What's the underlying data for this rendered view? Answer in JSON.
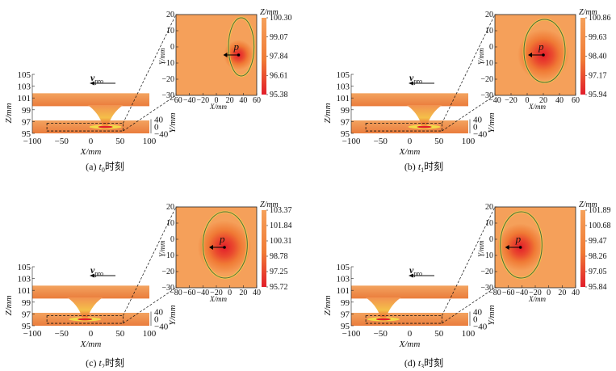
{
  "colors": {
    "low": "#e21d2a",
    "mid": "#f07a35",
    "high": "#f5a05a",
    "bright": "#f3e24a",
    "contour": "#4a6a3a",
    "frame": "#222222"
  },
  "chart_data": [
    {
      "type": "heatmap",
      "panel": "a",
      "caption": "(a) t0时刻",
      "caption_sub": {
        "prefix": "(a) ",
        "var": "t",
        "sub": "0",
        "suffix": "时刻"
      },
      "velocity_label": {
        "main": "v",
        "sub": "pro"
      },
      "view3d": {
        "zlabel": "Z/mm",
        "xlabel": "X/mm",
        "ylabel": "Y/mm",
        "z_ticks": [
          "105",
          "103",
          "101",
          "99",
          "97",
          "95"
        ],
        "x_ticks": [
          "−100",
          "−50",
          "0",
          "50",
          "100"
        ],
        "y_ticks": [
          "40",
          "0",
          "−40"
        ],
        "crater_x": 25
      },
      "zoom": {
        "xlabel": "X/mm",
        "ylabel": "Y/mm",
        "xlim": [
          -60,
          60
        ],
        "ylim": [
          -30,
          20
        ],
        "x_ticks": [
          "−60",
          "−40",
          "−20",
          "0",
          "20",
          "40",
          "60"
        ],
        "y_ticks": [
          "20",
          "10",
          "0",
          "−10",
          "−20",
          "−30"
        ],
        "point_label": "p",
        "center": [
          33,
          -5
        ],
        "radius": [
          14,
          11
        ],
        "contour": [
          [
            18,
            -18
          ],
          [
            56,
            18
          ]
        ]
      },
      "colorbar": {
        "title": "Z/mm",
        "ticks": [
          "100.30",
          "99.07",
          "97.84",
          "96.61",
          "95.38"
        ]
      }
    },
    {
      "type": "heatmap",
      "panel": "b",
      "caption": "(b) t1时刻",
      "caption_sub": {
        "prefix": "(b) ",
        "var": "t",
        "sub": "1",
        "suffix": "时刻"
      },
      "velocity_label": {
        "main": "v",
        "sub": "pro"
      },
      "view3d": {
        "zlabel": "Z/mm",
        "xlabel": "X/mm",
        "ylabel": "Y/mm",
        "z_ticks": [
          "105",
          "103",
          "101",
          "99",
          "97",
          "95"
        ],
        "x_ticks": [
          "−100",
          "−50",
          "0",
          "50",
          "100"
        ],
        "y_ticks": [
          "40",
          "0",
          "−40"
        ],
        "crater_x": 25
      },
      "zoom": {
        "xlabel": "X/mm",
        "ylabel": "Y/mm",
        "xlim": [
          -40,
          60
        ],
        "ylim": [
          -30,
          20
        ],
        "x_ticks": [
          "−40",
          "−20",
          "0",
          "20",
          "40",
          "60"
        ],
        "y_ticks": [
          "20",
          "10",
          "0",
          "−10",
          "−20",
          "−30"
        ],
        "point_label": "p",
        "center": [
          20,
          -5
        ],
        "radius": [
          20,
          14
        ],
        "contour": [
          [
            -4,
            -22
          ],
          [
            47,
            17
          ]
        ]
      },
      "colorbar": {
        "title": "Z/mm",
        "ticks": [
          "100.86",
          "99.63",
          "98.40",
          "97.17",
          "95.94"
        ]
      }
    },
    {
      "type": "heatmap",
      "panel": "c",
      "caption": "(c) t2时刻",
      "caption_sub": {
        "prefix": "(c) ",
        "var": "t",
        "sub": "2",
        "suffix": "时刻"
      },
      "velocity_label": {
        "main": "v",
        "sub": "pro"
      },
      "view3d": {
        "zlabel": "Z/mm",
        "xlabel": "X/mm",
        "ylabel": "Y/mm",
        "z_ticks": [
          "105",
          "103",
          "101",
          "99",
          "97",
          "95"
        ],
        "x_ticks": [
          "−100",
          "−50",
          "0",
          "50",
          "100"
        ],
        "y_ticks": [
          "40",
          "0",
          "−40"
        ],
        "crater_x": -10
      },
      "zoom": {
        "xlabel": "X/mm",
        "ylabel": "Y/mm",
        "xlim": [
          -80,
          40
        ],
        "ylim": [
          -30,
          20
        ],
        "x_ticks": [
          "−80",
          "−60",
          "−40",
          "−20",
          "0",
          "20",
          "40"
        ],
        "y_ticks": [
          "20",
          "10",
          "0",
          "−10",
          "−20",
          "−30"
        ],
        "point_label": "p",
        "center": [
          -8,
          -5
        ],
        "radius": [
          25,
          16
        ],
        "contour": [
          [
            -40,
            -24
          ],
          [
            26,
            17
          ]
        ]
      },
      "colorbar": {
        "title": "Z/mm",
        "ticks": [
          "103.37",
          "101.84",
          "100.31",
          "98.78",
          "97.25",
          "95.72"
        ]
      }
    },
    {
      "type": "heatmap",
      "panel": "d",
      "caption": "(d) t3时刻",
      "caption_sub": {
        "prefix": "(d) ",
        "var": "t",
        "sub": "3",
        "suffix": "时刻"
      },
      "velocity_label": {
        "main": "v",
        "sub": "pro"
      },
      "view3d": {
        "zlabel": "Z/mm",
        "xlabel": "X/mm",
        "ylabel": "Y/mm",
        "z_ticks": [
          "105",
          "103",
          "101",
          "99",
          "97",
          "95"
        ],
        "x_ticks": [
          "−100",
          "−50",
          "0",
          "50",
          "100"
        ],
        "y_ticks": [
          "40",
          "0",
          "−40"
        ],
        "crater_x": -45
      },
      "zoom": {
        "xlabel": "X/mm",
        "ylabel": "Y/mm",
        "xlim": [
          -80,
          40
        ],
        "ylim": [
          -30,
          20
        ],
        "x_ticks": [
          "−80",
          "−60",
          "−40",
          "−20",
          "0",
          "20",
          "40"
        ],
        "y_ticks": [
          "20",
          "10",
          "0",
          "−10",
          "−20",
          "−30"
        ],
        "point_label": "p",
        "center": [
          -42,
          -5
        ],
        "radius": [
          22,
          15
        ],
        "contour": [
          [
            -72,
            -24
          ],
          [
            -10,
            17
          ]
        ]
      },
      "colorbar": {
        "title": "Z/mm",
        "ticks": [
          "101.89",
          "100.68",
          "99.47",
          "98.26",
          "97.05",
          "95.84"
        ]
      }
    }
  ]
}
